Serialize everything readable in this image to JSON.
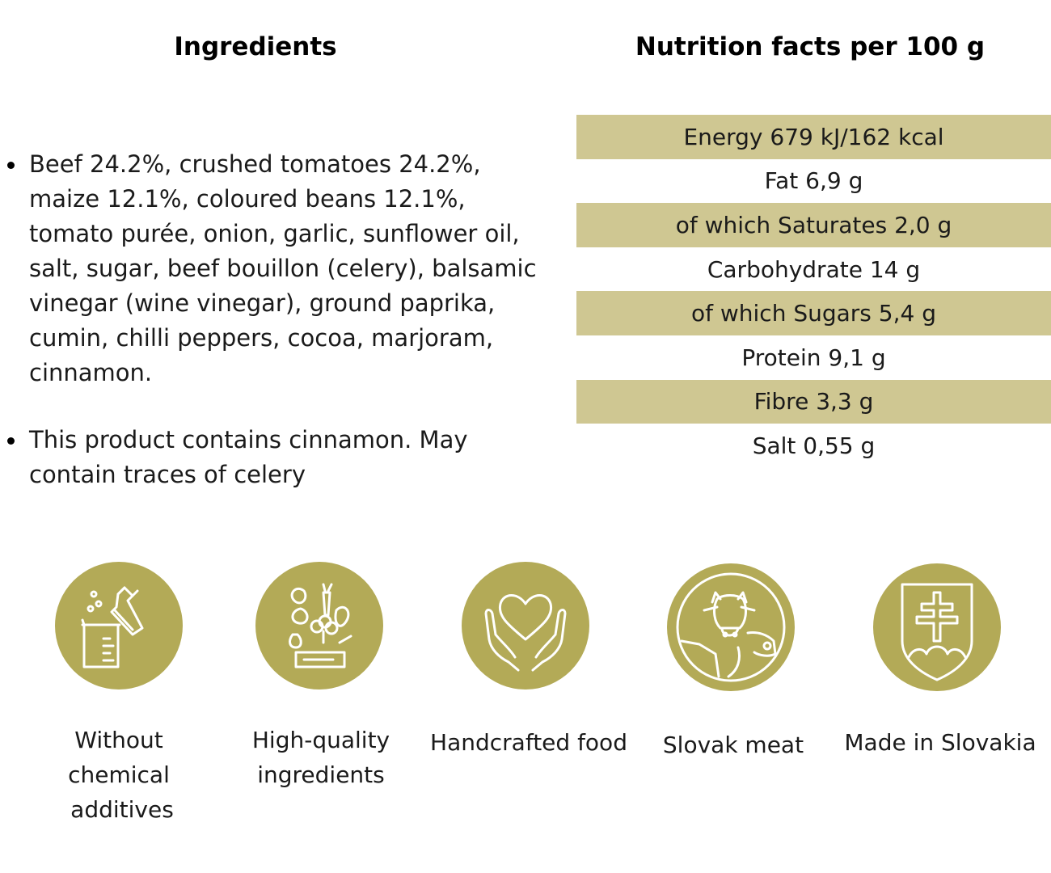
{
  "ingredients": {
    "title": "Ingredients",
    "items": [
      "Beef 24.2%, crushed tomatoes 24.2%, maize 12.1%, coloured beans 12.1%, tomato purée, onion, garlic, sunflower oil, salt, sugar, beef bouillon (celery), balsamic vinegar (wine vinegar), ground paprika, cumin, chilli peppers, cocoa, marjoram, cinnamon.",
      "This product contains cinnamon. May contain traces of celery"
    ]
  },
  "nutrition": {
    "title": "Nutrition facts per 100 g",
    "rows": [
      "Energy 679 kJ/162 kcal",
      "Fat 6,9 g",
      "of which Saturates 2,0 g",
      "Carbohydrate 14 g",
      "of which Sugars 5,4 g",
      "Protein 9,1 g",
      "Fibre 3,3 g",
      "Salt 0,55 g"
    ]
  },
  "badges": [
    {
      "icon": "chemistry-flask-icon",
      "label_lines": [
        "Without",
        "chemical",
        "additives"
      ]
    },
    {
      "icon": "vegetables-icon",
      "label_lines": [
        "High-quality",
        "ingredients"
      ]
    },
    {
      "icon": "heart-hands-icon",
      "label_lines": [
        "Handcrafted food"
      ]
    },
    {
      "icon": "cow-pig-icon",
      "label_lines": [
        "Slovak meat"
      ]
    },
    {
      "icon": "slovak-shield-icon",
      "label_lines": [
        "Made in Slovakia"
      ]
    }
  ],
  "colors": {
    "row_shade": "#cfc792",
    "badge": "#b3aa57",
    "icon_line": "#ffffff"
  }
}
